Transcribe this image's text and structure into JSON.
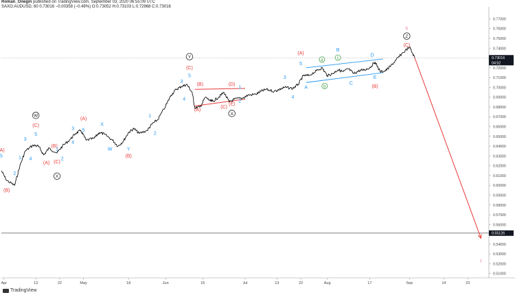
{
  "header": {
    "author": "Roman_Onegin",
    "published": "published on TradingView.com, September 03, 2020 06:55:09 UTC",
    "symbol_line": "SAXO:AUDUSD, 60",
    "last": "0.73016",
    "change": "−0.00358 (−0.49%)",
    "ohlc": "O:0.73052 H:0.73103 L:0.72968 C:0.73016"
  },
  "footer": {
    "brand": "TradingView"
  },
  "colors": {
    "price": "#111111",
    "wave_red": "#e53935",
    "wave_blue": "#2196f3",
    "wave_green": "#43a047",
    "wave_pink": "#f48fb1",
    "channel": "#2196f3",
    "trend_red": "#e53935"
  },
  "chart_data": {
    "type": "line",
    "series": [
      {
        "values": [
          [
            "2020-03-31",
            0.615
          ],
          [
            "2020-04-02",
            0.605
          ],
          [
            "2020-04-05",
            0.6
          ],
          [
            "2020-04-07",
            0.62
          ],
          [
            "2020-04-09",
            0.635
          ],
          [
            "2020-04-12",
            0.641
          ],
          [
            "2020-04-14",
            0.64
          ],
          [
            "2020-04-16",
            0.631
          ],
          [
            "2020-04-18",
            0.638
          ],
          [
            "2020-04-21",
            0.633
          ],
          [
            "2020-04-23",
            0.64
          ],
          [
            "2020-04-26",
            0.647
          ],
          [
            "2020-04-28",
            0.653
          ],
          [
            "2020-04-30",
            0.656
          ],
          [
            "2020-05-02",
            0.646
          ],
          [
            "2020-05-05",
            0.648
          ],
          [
            "2020-05-07",
            0.654
          ],
          [
            "2020-05-09",
            0.652
          ],
          [
            "2020-05-12",
            0.646
          ],
          [
            "2020-05-14",
            0.64
          ],
          [
            "2020-05-16",
            0.645
          ],
          [
            "2020-05-18",
            0.654
          ],
          [
            "2020-05-20",
            0.658
          ],
          [
            "2020-05-22",
            0.653
          ],
          [
            "2020-05-25",
            0.656
          ],
          [
            "2020-05-27",
            0.663
          ],
          [
            "2020-05-29",
            0.667
          ],
          [
            "2020-06-01",
            0.681
          ],
          [
            "2020-06-03",
            0.692
          ],
          [
            "2020-06-05",
            0.698
          ],
          [
            "2020-06-07",
            0.701
          ],
          [
            "2020-06-09",
            0.703
          ],
          [
            "2020-06-11",
            0.695
          ],
          [
            "2020-06-12",
            0.679
          ],
          [
            "2020-06-14",
            0.68
          ],
          [
            "2020-06-16",
            0.69
          ],
          [
            "2020-06-18",
            0.686
          ],
          [
            "2020-06-19",
            0.686
          ],
          [
            "2020-06-21",
            0.69
          ],
          [
            "2020-06-23",
            0.695
          ],
          [
            "2020-06-25",
            0.685
          ],
          [
            "2020-06-27",
            0.688
          ],
          [
            "2020-06-30",
            0.689
          ],
          [
            "2020-07-02",
            0.692
          ],
          [
            "2020-07-05",
            0.693
          ],
          [
            "2020-07-07",
            0.696
          ],
          [
            "2020-07-09",
            0.698
          ],
          [
            "2020-07-12",
            0.696
          ],
          [
            "2020-07-14",
            0.698
          ],
          [
            "2020-07-16",
            0.7
          ],
          [
            "2020-07-19",
            0.699
          ],
          [
            "2020-07-21",
            0.703
          ],
          [
            "2020-07-23",
            0.712
          ],
          [
            "2020-07-25",
            0.712
          ],
          [
            "2020-07-28",
            0.717
          ],
          [
            "2020-07-30",
            0.72
          ],
          [
            "2020-08-01",
            0.712
          ],
          [
            "2020-08-03",
            0.714
          ],
          [
            "2020-08-05",
            0.718
          ],
          [
            "2020-08-07",
            0.716
          ],
          [
            "2020-08-09",
            0.719
          ],
          [
            "2020-08-11",
            0.714
          ],
          [
            "2020-08-13",
            0.717
          ],
          [
            "2020-08-15",
            0.718
          ],
          [
            "2020-08-17",
            0.72
          ],
          [
            "2020-08-19",
            0.726
          ],
          [
            "2020-08-21",
            0.716
          ],
          [
            "2020-08-23",
            0.717
          ],
          [
            "2020-08-25",
            0.722
          ],
          [
            "2020-08-27",
            0.728
          ],
          [
            "2020-08-29",
            0.734
          ],
          [
            "2020-09-01",
            0.7413
          ],
          [
            "2020-09-03",
            0.7302
          ]
        ]
      }
    ],
    "projection": [
      [
        "2020-09-03",
        0.7302
      ],
      [
        "2020-09-28",
        0.546
      ]
    ],
    "red_lines": [
      [
        [
          "2020-06-12",
          0.698
        ],
        [
          "2020-07-01",
          0.699
        ]
      ],
      [
        [
          "2020-06-12",
          0.681
        ],
        [
          "2020-07-01",
          0.688
        ]
      ]
    ],
    "blue_channel": [
      [
        [
          "2020-07-24",
          0.72
        ],
        [
          "2020-08-22",
          0.729
        ]
      ],
      [
        [
          "2020-07-24",
          0.705
        ],
        [
          "2020-08-22",
          0.715
        ]
      ]
    ],
    "hlines": [
      {
        "y": 0.7302,
        "style": "dotted"
      },
      {
        "y": 0.55126,
        "style": "solid"
      }
    ],
    "x_ticks": [
      [
        "2020-04-01",
        "Apr"
      ],
      [
        "2020-04-13",
        "13"
      ],
      [
        "2020-04-22",
        "22"
      ],
      [
        "2020-05-01",
        "May"
      ],
      [
        "2020-05-18",
        "18"
      ],
      [
        "2020-06-01",
        "Jun"
      ],
      [
        "2020-06-15",
        "15"
      ],
      [
        "2020-07-01",
        "Jul"
      ],
      [
        "2020-07-13",
        "13"
      ],
      [
        "2020-07-22",
        "22"
      ],
      [
        "2020-08-01",
        "Aug"
      ],
      [
        "2020-08-17",
        "17"
      ],
      [
        "2020-09-01",
        "Sep"
      ],
      [
        "2020-09-14",
        "14"
      ],
      [
        "2020-09-23",
        "23"
      ]
    ],
    "y_ticks": [
      "0.77000",
      "0.76000",
      "0.75000",
      "0.74000",
      "0.72000",
      "0.71000",
      "0.70000",
      "0.69000",
      "0.68000",
      "0.67000",
      "0.66000",
      "0.65000",
      "0.64000",
      "0.63000",
      "0.62000",
      "0.61000",
      "0.60000",
      "0.59000",
      "0.58000",
      "0.57000",
      "0.56000",
      "0.54000",
      "0.53000",
      "0.52000",
      "0.51000"
    ],
    "price_labels": [
      {
        "y": 0.7302,
        "text": "0.73016",
        "sub": "04:52"
      },
      {
        "y": 0.55126,
        "text": "0.55126"
      }
    ],
    "xlim": [
      "2020-03-31",
      "2020-10-01"
    ],
    "ylim": [
      0.507,
      0.778
    ],
    "annotations": [
      {
        "t": "2020-03-31",
        "y": 0.636,
        "text": "(A)",
        "c": "wave_red"
      },
      {
        "t": "2020-03-31",
        "y": 0.63,
        "text": "5",
        "c": "wave_blue"
      },
      {
        "t": "2020-04-02",
        "y": 0.595,
        "text": "(B)",
        "c": "wave_red"
      },
      {
        "t": "2020-04-05",
        "y": 0.612,
        "text": "2",
        "c": "wave_blue"
      },
      {
        "t": "2020-04-07",
        "y": 0.628,
        "text": "1",
        "c": "wave_blue"
      },
      {
        "t": "2020-04-09",
        "y": 0.647,
        "text": "3",
        "c": "wave_blue"
      },
      {
        "t": "2020-04-11",
        "y": 0.627,
        "text": "4",
        "c": "wave_blue"
      },
      {
        "t": "2020-04-13",
        "y": 0.652,
        "text": "5",
        "c": "wave_blue"
      },
      {
        "t": "2020-04-13",
        "y": 0.661,
        "text": "(C)",
        "c": "wave_red"
      },
      {
        "t": "2020-04-13",
        "y": 0.67,
        "text": "W",
        "c": "circle"
      },
      {
        "t": "2020-04-17",
        "y": 0.623,
        "text": "(A)",
        "c": "wave_red"
      },
      {
        "t": "2020-04-20",
        "y": 0.64,
        "text": "(B)",
        "c": "wave_red"
      },
      {
        "t": "2020-04-21",
        "y": 0.637,
        "text": "1",
        "c": "wave_blue"
      },
      {
        "t": "2020-04-21",
        "y": 0.624,
        "text": "(C)",
        "c": "wave_red"
      },
      {
        "t": "2020-04-21",
        "y": 0.608,
        "text": "X",
        "c": "circle"
      },
      {
        "t": "2020-04-23",
        "y": 0.627,
        "text": "2",
        "c": "wave_blue"
      },
      {
        "t": "2020-04-27",
        "y": 0.658,
        "text": "3",
        "c": "wave_blue"
      },
      {
        "t": "2020-04-27",
        "y": 0.644,
        "text": "4",
        "c": "wave_blue"
      },
      {
        "t": "2020-05-01",
        "y": 0.668,
        "text": "(A)",
        "c": "wave_red"
      },
      {
        "t": "2020-05-01",
        "y": 0.656,
        "text": "5",
        "c": "wave_blue"
      },
      {
        "t": "2020-05-08",
        "y": 0.662,
        "text": "X",
        "c": "wave_blue"
      },
      {
        "t": "2020-05-11",
        "y": 0.637,
        "text": "W",
        "c": "wave_blue"
      },
      {
        "t": "2020-05-18",
        "y": 0.637,
        "text": "Y",
        "c": "wave_blue"
      },
      {
        "t": "2020-05-18",
        "y": 0.63,
        "text": "(B)",
        "c": "wave_red"
      },
      {
        "t": "2020-05-26",
        "y": 0.671,
        "text": "1",
        "c": "wave_blue"
      },
      {
        "t": "2020-05-28",
        "y": 0.653,
        "text": "2",
        "c": "wave_blue"
      },
      {
        "t": "2020-06-07",
        "y": 0.706,
        "text": "3",
        "c": "wave_blue"
      },
      {
        "t": "2020-06-08",
        "y": 0.688,
        "text": "4",
        "c": "wave_blue"
      },
      {
        "t": "2020-06-10",
        "y": 0.712,
        "text": "5",
        "c": "wave_blue"
      },
      {
        "t": "2020-06-10",
        "y": 0.72,
        "text": "(C)",
        "c": "wave_red"
      },
      {
        "t": "2020-06-10",
        "y": 0.73,
        "text": "Y",
        "c": "circle"
      },
      {
        "t": "2020-06-14",
        "y": 0.703,
        "text": "(B)",
        "c": "wave_red"
      },
      {
        "t": "2020-06-13",
        "y": 0.677,
        "text": "(A)",
        "c": "wave_red"
      },
      {
        "t": "2020-06-23",
        "y": 0.68,
        "text": "(C)",
        "c": "wave_red"
      },
      {
        "t": "2020-06-26",
        "y": 0.703,
        "text": "(D)",
        "c": "wave_red"
      },
      {
        "t": "2020-06-26",
        "y": 0.683,
        "text": "(E)",
        "c": "wave_red"
      },
      {
        "t": "2020-06-26",
        "y": 0.672,
        "text": "X",
        "c": "circle"
      },
      {
        "t": "2020-06-29",
        "y": 0.7,
        "text": "1",
        "c": "wave_blue"
      },
      {
        "t": "2020-06-29",
        "y": 0.686,
        "text": "2",
        "c": "wave_blue"
      },
      {
        "t": "2020-07-16",
        "y": 0.71,
        "text": "3",
        "c": "wave_blue"
      },
      {
        "t": "2020-07-19",
        "y": 0.69,
        "text": "4",
        "c": "wave_blue"
      },
      {
        "t": "2020-07-22",
        "y": 0.735,
        "text": "(A)",
        "c": "wave_red"
      },
      {
        "t": "2020-07-22",
        "y": 0.724,
        "text": "5",
        "c": "wave_blue"
      },
      {
        "t": "2020-07-24",
        "y": 0.7,
        "text": "A",
        "c": "wave_blue"
      },
      {
        "t": "2020-07-30",
        "y": 0.727,
        "text": "a",
        "c": "wave_green"
      },
      {
        "t": "2020-07-31",
        "y": 0.7,
        "text": "b",
        "c": "wave_green"
      },
      {
        "t": "2020-08-05",
        "y": 0.729,
        "text": "c",
        "c": "wave_green"
      },
      {
        "t": "2020-08-05",
        "y": 0.738,
        "text": "B",
        "c": "wave_blue"
      },
      {
        "t": "2020-08-10",
        "y": 0.704,
        "text": "C",
        "c": "wave_blue"
      },
      {
        "t": "2020-08-18",
        "y": 0.733,
        "text": "D",
        "c": "wave_blue"
      },
      {
        "t": "2020-08-19",
        "y": 0.71,
        "text": "E",
        "c": "wave_blue"
      },
      {
        "t": "2020-08-19",
        "y": 0.701,
        "text": "(B)",
        "c": "wave_red"
      },
      {
        "t": "2020-08-31",
        "y": 0.743,
        "text": "(C)",
        "c": "wave_red"
      },
      {
        "t": "2020-08-31",
        "y": 0.751,
        "text": "Z",
        "c": "circle"
      },
      {
        "t": "2020-08-31",
        "y": 0.76,
        "text": "b",
        "c": "wave_pink"
      },
      {
        "t": "2020-09-28",
        "y": 0.523,
        "text": "c",
        "c": "wave_pink"
      }
    ]
  }
}
